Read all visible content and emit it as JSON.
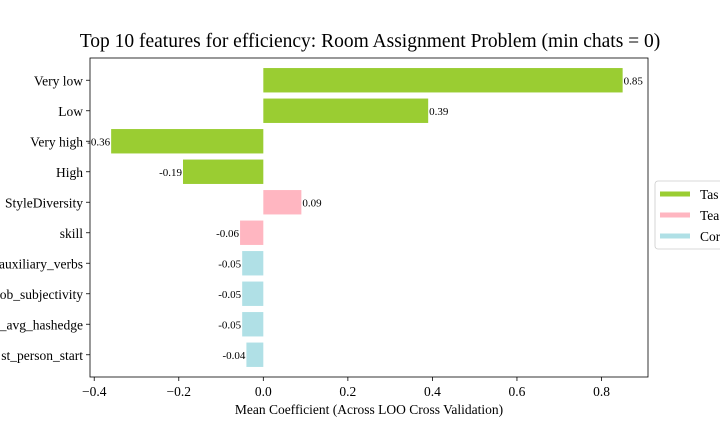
{
  "chart_data": {
    "type": "bar",
    "orientation": "horizontal",
    "title": "Top 10 features for efficiency: Room Assignment Problem (min chats = 0)",
    "xlabel": "Mean Coefficient (Across LOO Cross Validation)",
    "ylabel": "",
    "xlim": [
      -0.41,
      0.91
    ],
    "xticks": [
      -0.4,
      -0.2,
      0.0,
      0.2,
      0.4,
      0.6,
      0.8
    ],
    "xtick_labels": [
      "−0.4",
      "−0.2",
      "0.0",
      "0.2",
      "0.4",
      "0.6",
      "0.8"
    ],
    "categories": [
      "Very low",
      "Low",
      "Very high",
      "High",
      "StyleDiversity",
      "skill",
      "auxiliary_verbs",
      "ob_subjectivity",
      "_avg_hashedge",
      "st_person_start"
    ],
    "values": [
      0.85,
      0.39,
      -0.36,
      -0.19,
      0.09,
      -0.055,
      -0.05,
      -0.05,
      -0.05,
      -0.04
    ],
    "value_labels": [
      "0.85",
      "0.39",
      "-0.36",
      "-0.19",
      "0.09",
      "-0.06",
      "-0.05",
      "-0.05",
      "-0.05",
      "-0.04"
    ],
    "groups": [
      "task",
      "task",
      "task",
      "task",
      "team",
      "team",
      "conv",
      "conv",
      "conv",
      "conv"
    ],
    "legend": {
      "placement": "right",
      "entries": [
        {
          "key": "task",
          "label": "Tas",
          "color": "#9acd32"
        },
        {
          "key": "team",
          "label": "Tea",
          "color": "#ffb6c1"
        },
        {
          "key": "conv",
          "label": "Cor",
          "color": "#b0e0e6"
        }
      ]
    }
  }
}
